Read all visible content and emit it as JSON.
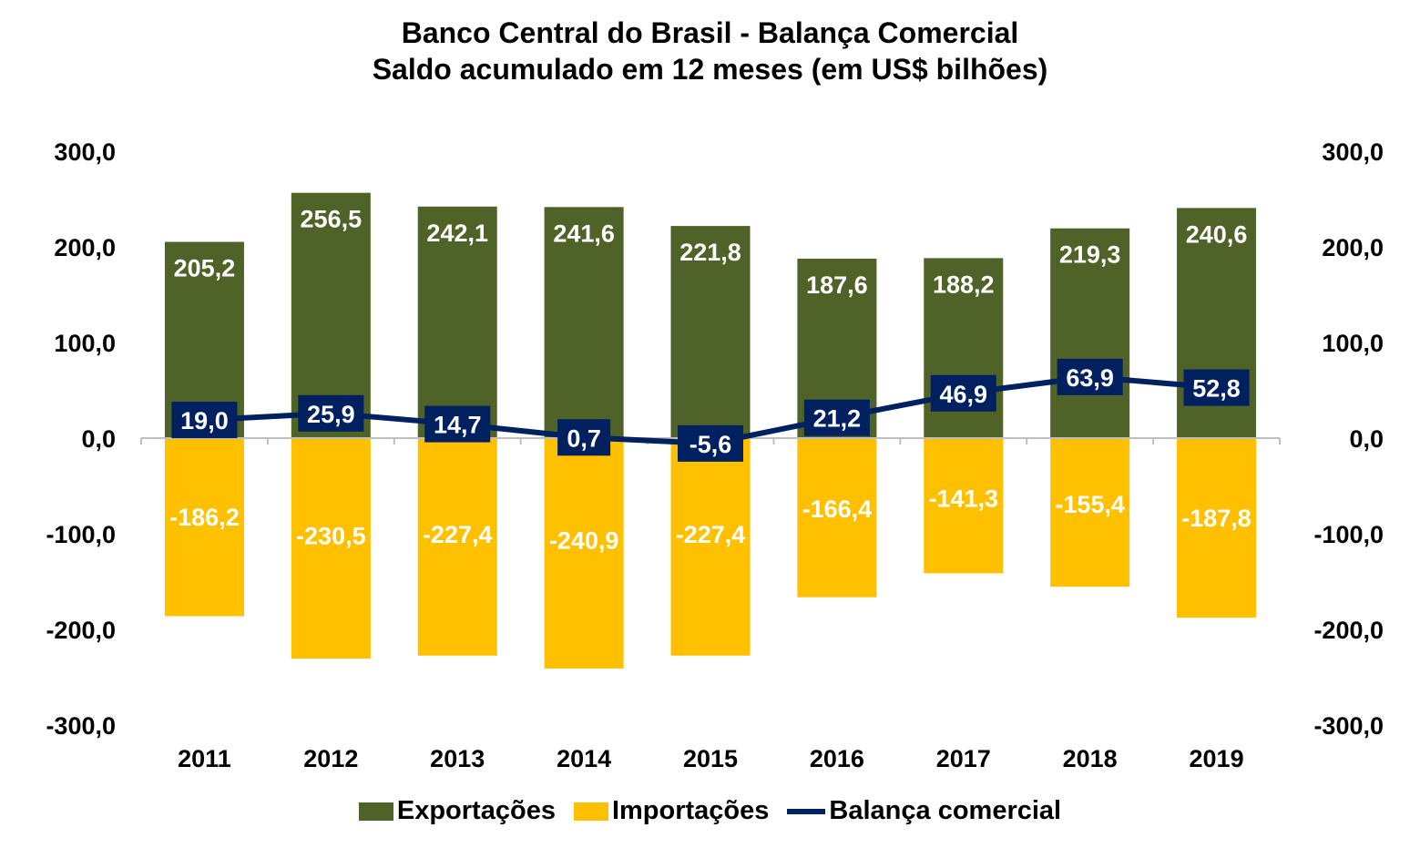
{
  "chart_data": {
    "type": "bar",
    "title": "Banco Central do Brasil - Balança Comercial",
    "subtitle": "Saldo acumulado em 12 meses (em US$ bilhões)",
    "categories": [
      "2011",
      "2012",
      "2013",
      "2014",
      "2015",
      "2016",
      "2017",
      "2018",
      "2019"
    ],
    "series": [
      {
        "name": "Exportações",
        "kind": "bar",
        "color": "#4f6228",
        "values": [
          205.2,
          256.5,
          242.1,
          241.6,
          221.8,
          187.6,
          188.2,
          219.3,
          240.6
        ],
        "labels": [
          "205,2",
          "256,5",
          "242,1",
          "241,6",
          "221,8",
          "187,6",
          "188,2",
          "219,3",
          "240,6"
        ]
      },
      {
        "name": "Importações",
        "kind": "bar",
        "color": "#ffc000",
        "values": [
          -186.2,
          -230.5,
          -227.4,
          -240.9,
          -227.4,
          -166.4,
          -141.3,
          -155.4,
          -187.8
        ],
        "labels": [
          "-186,2",
          "-230,5",
          "-227,4",
          "-240,9",
          "-227,4",
          "-166,4",
          "-141,3",
          "-155,4",
          "-187,8"
        ]
      },
      {
        "name": "Balança comercial",
        "kind": "line",
        "color": "#002060",
        "values": [
          19.0,
          25.9,
          14.7,
          0.7,
          -5.6,
          21.2,
          46.9,
          63.9,
          52.8
        ],
        "labels": [
          "19,0",
          "25,9",
          "14,7",
          "0,7",
          "-5,6",
          "21,2",
          "46,9",
          "63,9",
          "52,8"
        ]
      }
    ],
    "ylim": [
      -300,
      300
    ],
    "yticks": [
      300,
      200,
      100,
      0,
      -100,
      -200,
      -300
    ],
    "ytick_labels": [
      "300,0",
      "200,0",
      "100,0",
      "0,0",
      "-100,0",
      "-200,0",
      "-300,0"
    ],
    "secondary_axis": true,
    "grid": false,
    "legend_position": "bottom"
  }
}
